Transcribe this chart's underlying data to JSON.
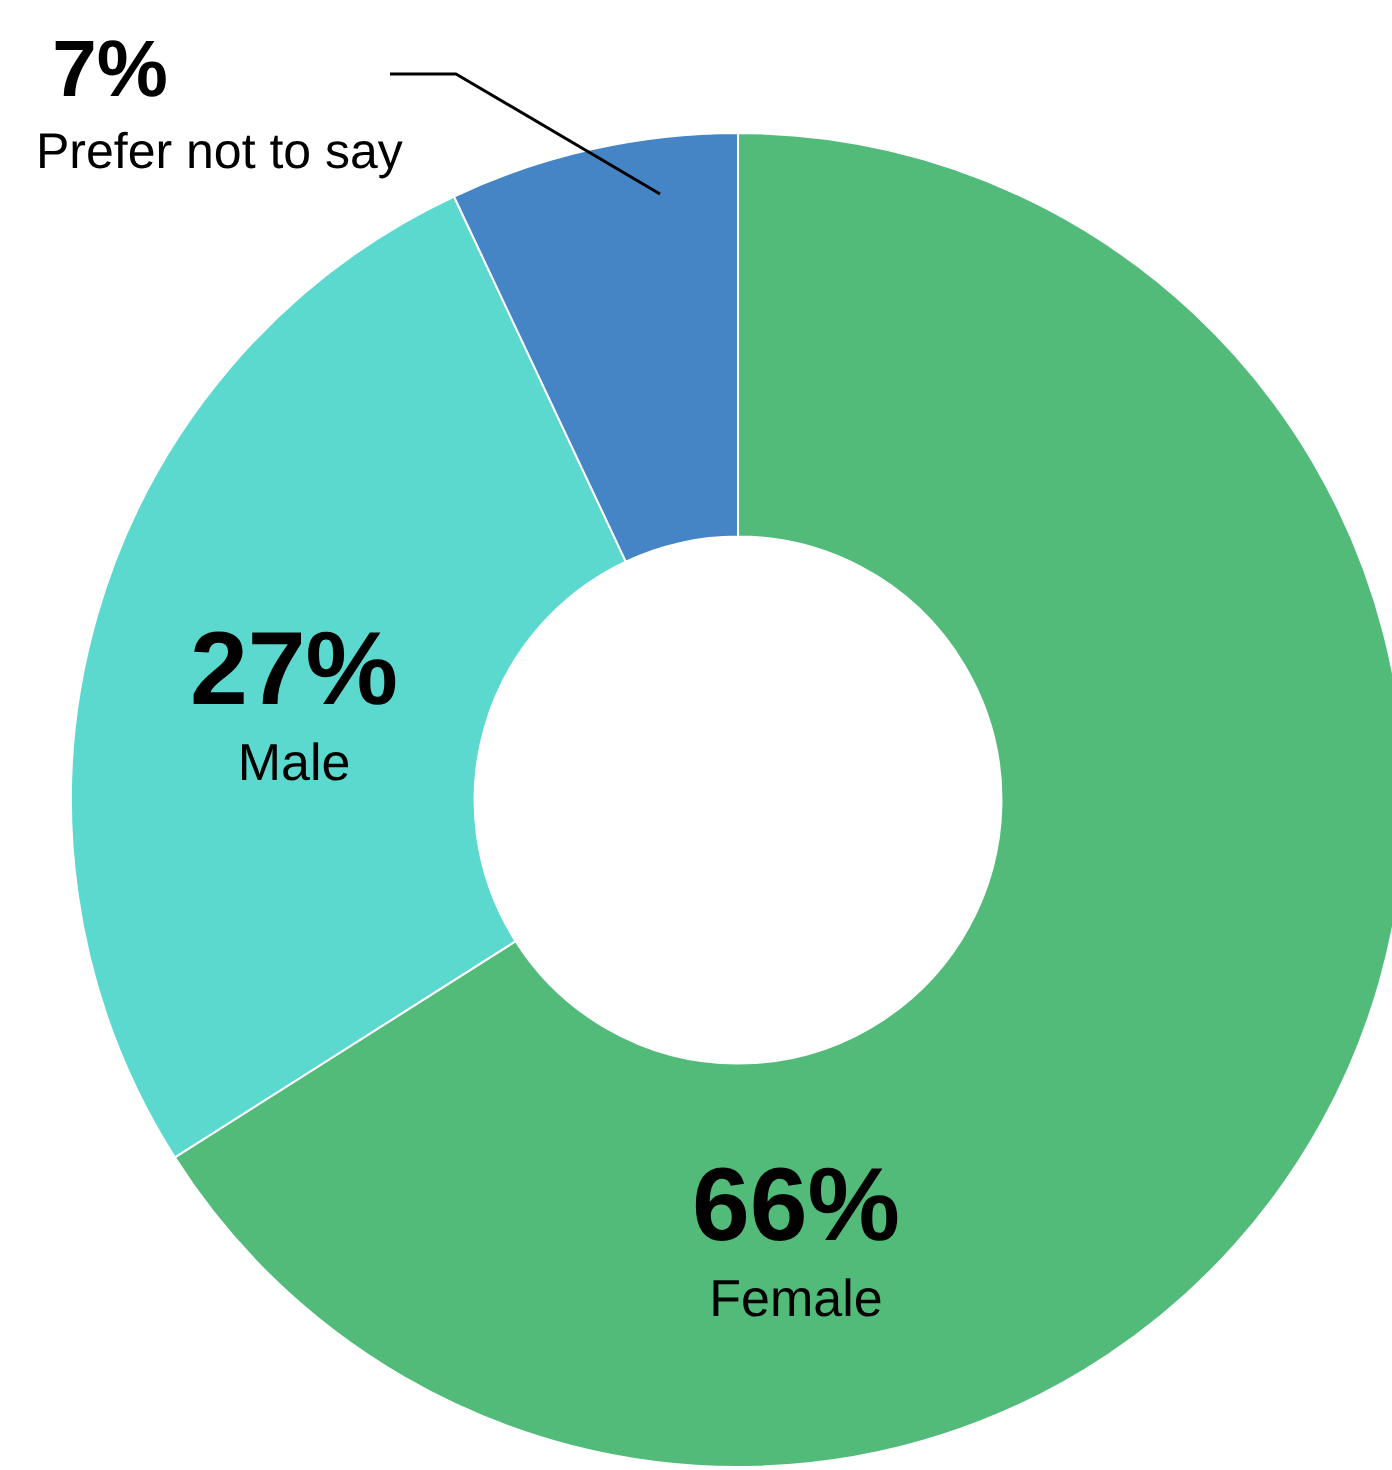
{
  "chart_data": {
    "type": "donut",
    "categories": [
      "Female",
      "Male",
      "Prefer not to say"
    ],
    "values": [
      66,
      27,
      7
    ],
    "value_labels": [
      "66%",
      "27%",
      "7%"
    ],
    "colors": [
      "#52bb7a",
      "#5bd9cf",
      "#4585c5"
    ],
    "legend": false
  }
}
